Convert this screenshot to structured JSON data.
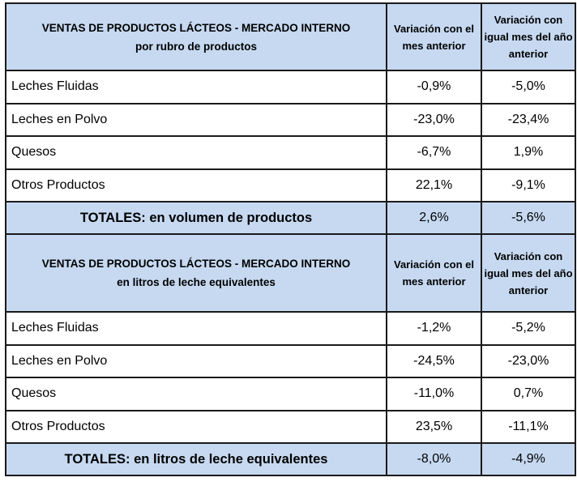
{
  "sections": [
    {
      "title_line1": "VENTAS DE PRODUCTOS LÁCTEOS - MERCADO INTERNO",
      "title_line2": "por rubro de productos",
      "col_prev_month": "Variación con el mes anterior",
      "col_prev_year": "Variación con igual mes del año anterior",
      "rows": [
        {
          "label": "Leches Fluidas",
          "prev_month": "-0,9%",
          "prev_year": "-5,0%"
        },
        {
          "label": "Leches en Polvo",
          "prev_month": "-23,0%",
          "prev_year": "-23,4%"
        },
        {
          "label": "Quesos",
          "prev_month": "-6,7%",
          "prev_year": "1,9%"
        },
        {
          "label": "Otros Productos",
          "prev_month": "22,1%",
          "prev_year": "-9,1%"
        }
      ],
      "total": {
        "label": "TOTALES: en volumen de productos",
        "prev_month": "2,6%",
        "prev_year": "-5,6%"
      }
    },
    {
      "title_line1": "VENTAS DE PRODUCTOS LÁCTEOS - MERCADO INTERNO",
      "title_line2": "en litros de leche equivalentes",
      "col_prev_month": "Variación con el mes anterior",
      "col_prev_year": "Variación con igual mes del año anterior",
      "rows": [
        {
          "label": "Leches Fluidas",
          "prev_month": "-1,2%",
          "prev_year": "-5,2%"
        },
        {
          "label": "Leches en Polvo",
          "prev_month": "-24,5%",
          "prev_year": "-23,0%"
        },
        {
          "label": "Quesos",
          "prev_month": "-11,0%",
          "prev_year": "0,7%"
        },
        {
          "label": "Otros Productos",
          "prev_month": "23,5%",
          "prev_year": "-11,1%"
        }
      ],
      "total": {
        "label": "TOTALES: en litros de leche equivalentes",
        "prev_month": "-8,0%",
        "prev_year": "-4,9%"
      }
    }
  ]
}
